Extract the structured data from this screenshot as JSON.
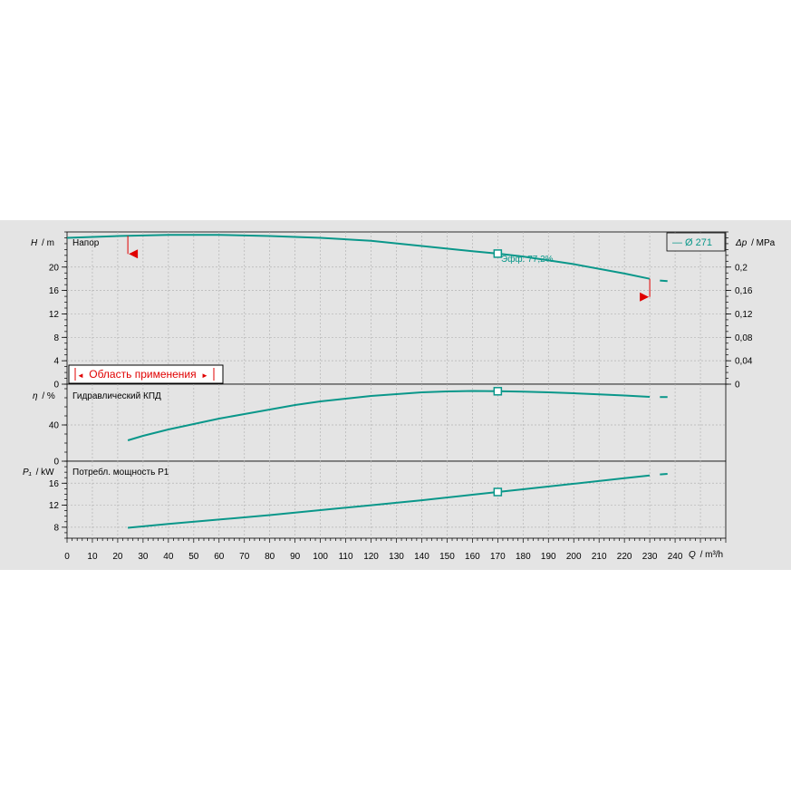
{
  "chart_data": {
    "type": "line",
    "x_axis": {
      "label_symbol": "Q",
      "label_unit": "/ m³/h",
      "range": [
        0,
        260
      ],
      "ticks": [
        0,
        10,
        20,
        30,
        40,
        50,
        60,
        70,
        80,
        90,
        100,
        110,
        120,
        130,
        140,
        150,
        160,
        170,
        180,
        190,
        200,
        210,
        220,
        230,
        240
      ]
    },
    "legend": {
      "text": "— Ø 271",
      "placement": "top-right"
    },
    "application_range": {
      "text": "Область применения",
      "arrow_left": "◄",
      "arrow_right": "►",
      "q_min": 24,
      "q_max": 230
    },
    "operating_point": {
      "q": 170,
      "h": 22.3,
      "eta": 77.2,
      "p1": 14.4
    },
    "panels": [
      {
        "id": "head",
        "title": "Напор",
        "ylabel_symbol": "H",
        "ylabel_unit": "/ m",
        "ylim": [
          0,
          26
        ],
        "yticks": [
          0,
          4,
          8,
          12,
          16,
          20
        ],
        "secondary_axis": {
          "label_symbol": "Δp",
          "label_unit": "/ MPa",
          "ylim": [
            0,
            0.26
          ],
          "ticks": [
            0,
            0.04,
            0.08,
            0.12,
            0.16,
            0.2
          ],
          "tick_labels": [
            "0",
            "0,04",
            "0,08",
            "0,12",
            "0,16",
            "0,2"
          ]
        },
        "annotation": "Эфф.  77,2%",
        "series": [
          {
            "name": "Ø 271",
            "x": [
              0,
              20,
              40,
              60,
              80,
              100,
              120,
              140,
              160,
              170,
              180,
              200,
              220,
              230
            ],
            "y": [
              25.0,
              25.3,
              25.5,
              25.5,
              25.3,
              25.0,
              24.5,
              23.6,
              22.7,
              22.3,
              21.8,
              20.5,
              18.9,
              18.0
            ]
          }
        ],
        "extension": {
          "x": [
            234,
            237
          ],
          "y": [
            17.7,
            17.6
          ]
        }
      },
      {
        "id": "efficiency",
        "title": "Гидравлический КПД",
        "ylabel_symbol": "η",
        "ylabel_unit": "/ %",
        "ylim": [
          0,
          85
        ],
        "yticks": [
          0,
          40
        ],
        "series": [
          {
            "name": "Ø 271",
            "x": [
              24,
              30,
              40,
              50,
              60,
              70,
              80,
              90,
              100,
              110,
              120,
              130,
              140,
              150,
              160,
              170,
              180,
              190,
              200,
              210,
              220,
              230
            ],
            "y": [
              23,
              28,
              35,
              41,
              47,
              52,
              57,
              62,
              66,
              69,
              72,
              74,
              76,
              77,
              77.5,
              77.2,
              76.8,
              76.0,
              75.0,
              73.8,
              72.5,
              71.0
            ]
          }
        ],
        "extension": {
          "x": [
            234,
            237
          ],
          "y": [
            70.8,
            70.8
          ]
        }
      },
      {
        "id": "power",
        "title": "Потребл. мощность P1",
        "ylabel_symbol": "P₁",
        "ylabel_unit": "/ kW",
        "ylim": [
          6,
          20
        ],
        "yticks": [
          8,
          12,
          16
        ],
        "series": [
          {
            "name": "Ø 271",
            "x": [
              24,
              40,
              60,
              80,
              100,
              120,
              140,
              160,
              170,
              180,
              200,
              220,
              230
            ],
            "y": [
              7.9,
              8.6,
              9.4,
              10.2,
              11.1,
              12.0,
              12.9,
              13.9,
              14.4,
              14.9,
              15.9,
              16.9,
              17.4
            ]
          }
        ],
        "extension": {
          "x": [
            234,
            237
          ],
          "y": [
            17.6,
            17.7
          ]
        }
      }
    ]
  }
}
